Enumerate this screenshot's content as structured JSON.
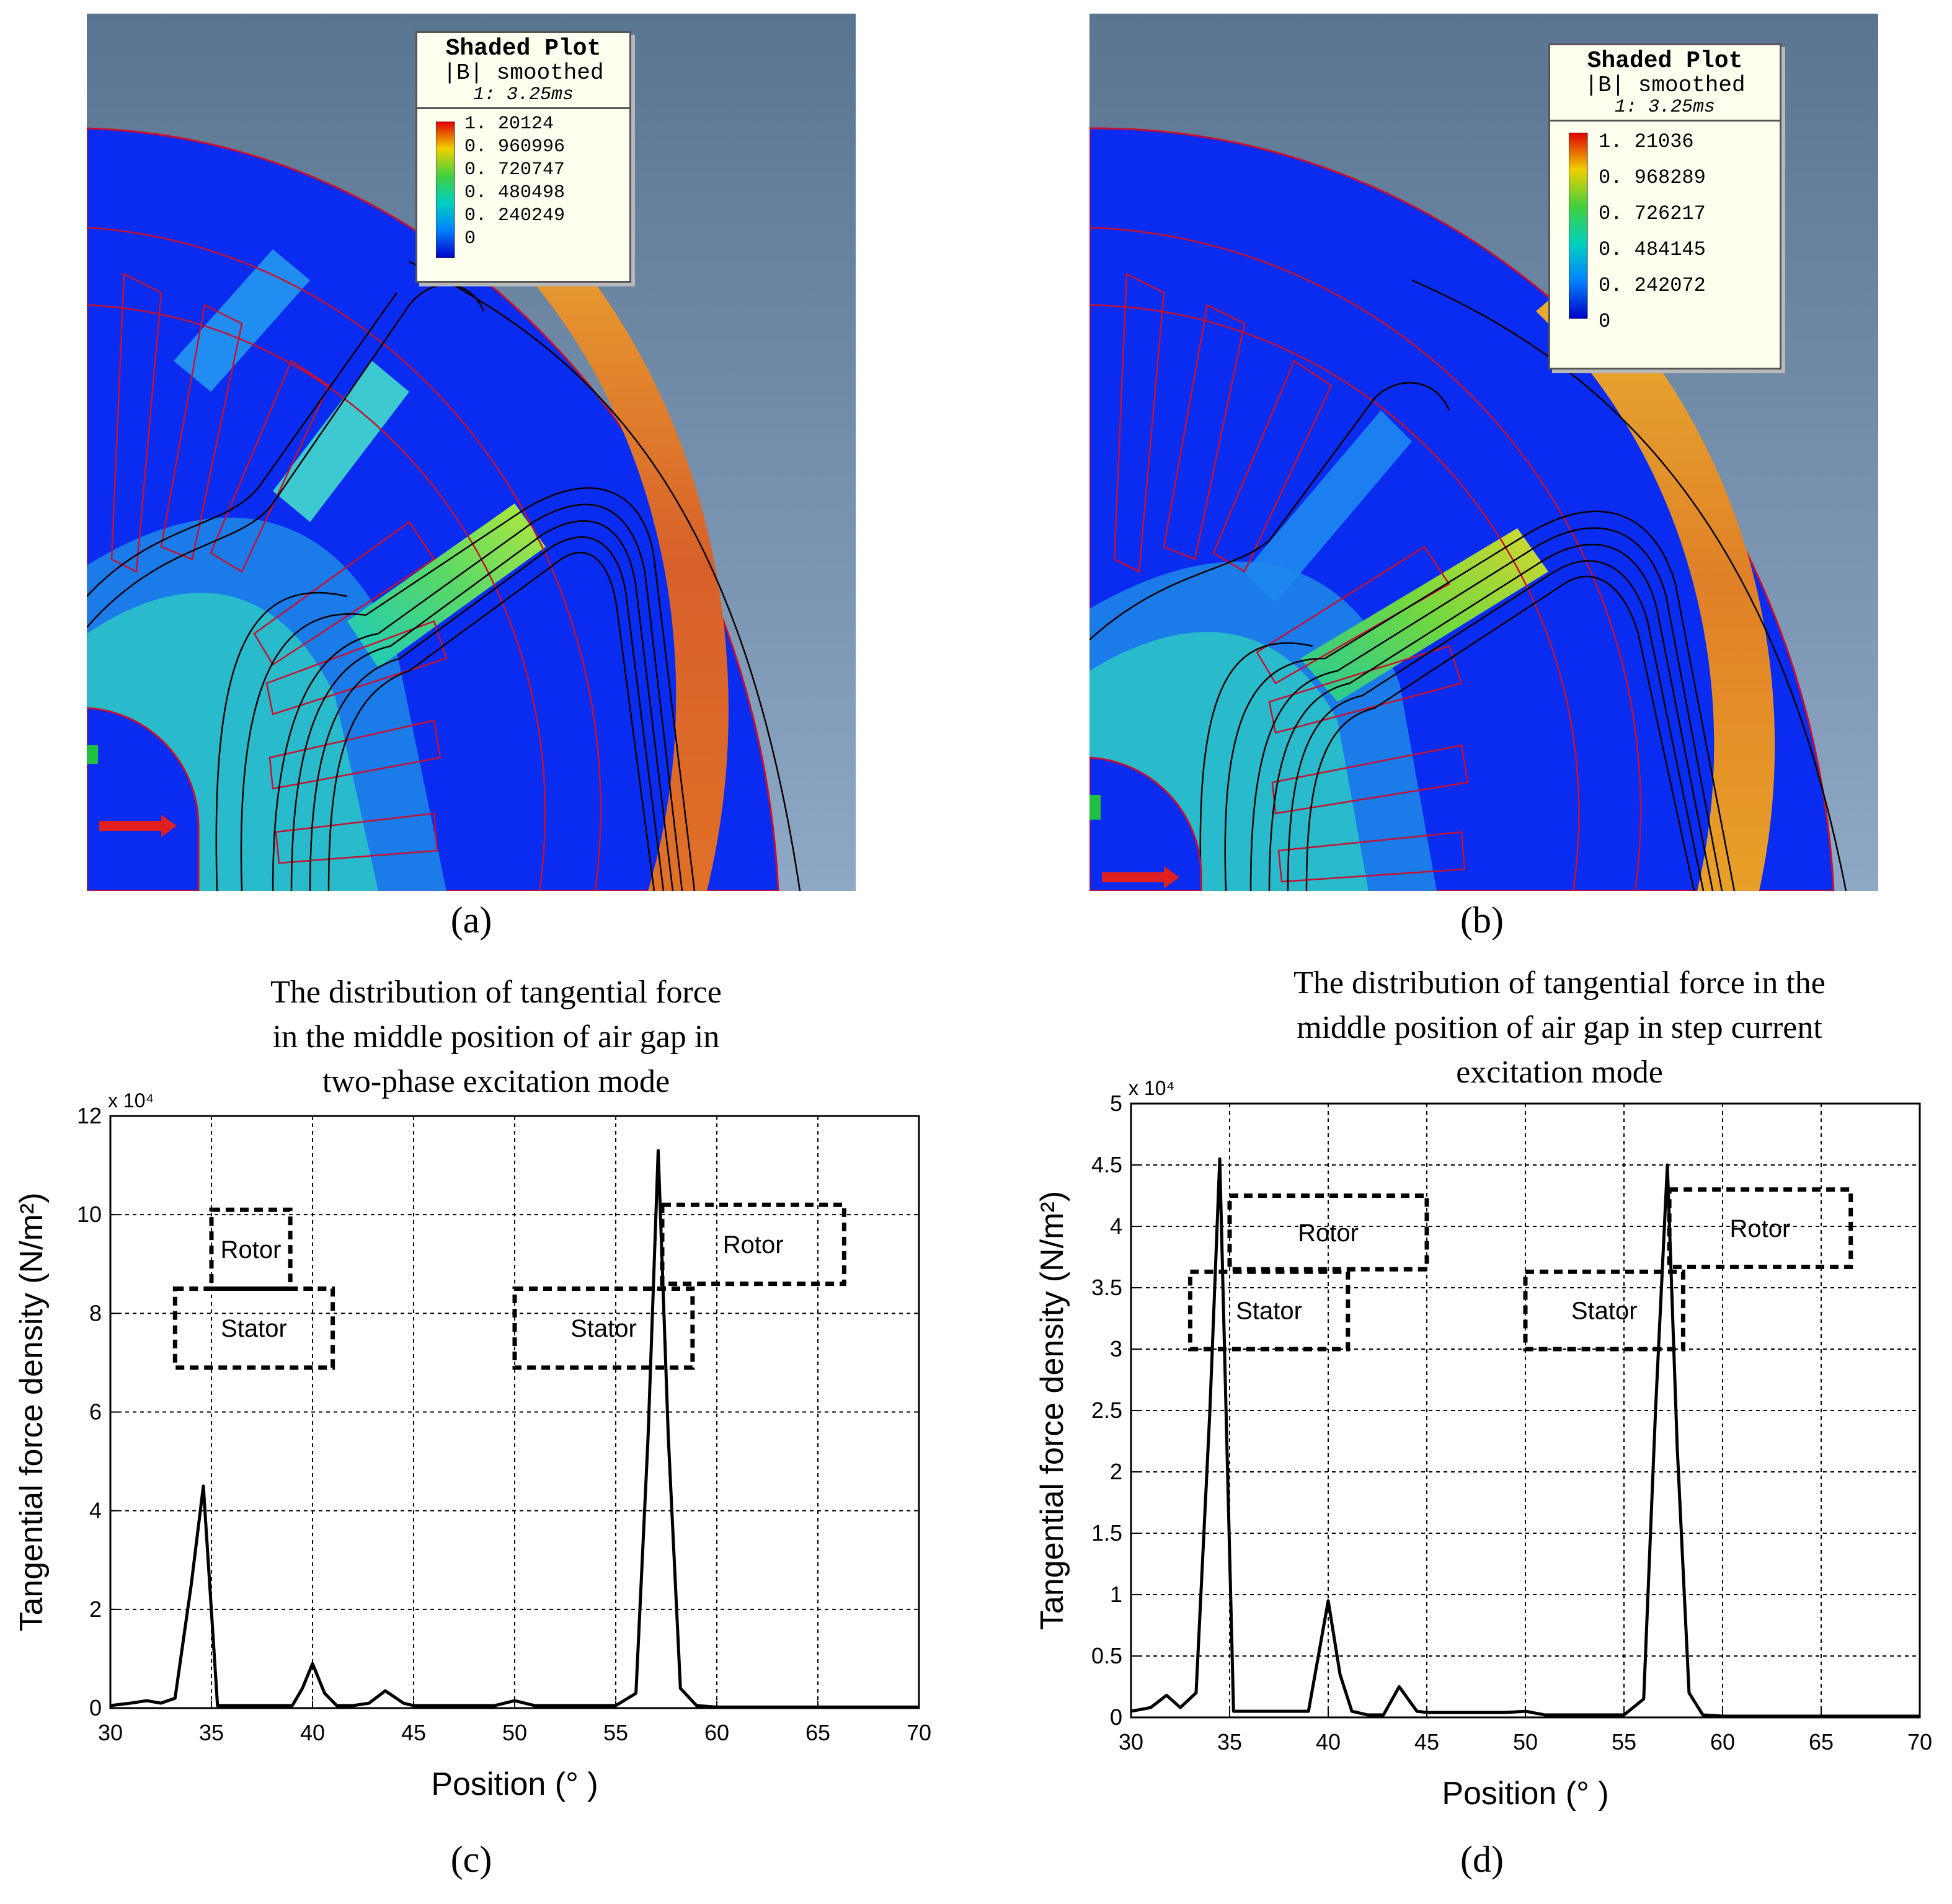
{
  "panels": [
    {
      "caption": "(a)",
      "legend": {
        "title": "Shaded Plot",
        "quantity": "|B| smoothed",
        "time": "1: 3.25ms",
        "values": [
          "1. 20124",
          "0. 960996",
          "0. 720747",
          "0. 480498",
          "0. 240249",
          "0"
        ]
      }
    },
    {
      "caption": "(b)",
      "legend": {
        "title": "Shaded Plot",
        "quantity": "|B| smoothed",
        "time": "1: 3.25ms",
        "values": [
          "1. 21036",
          "0. 968289",
          "0. 726217",
          "0. 484145",
          "0. 242072",
          "0"
        ]
      }
    },
    {
      "caption": "(c)"
    },
    {
      "caption": "(d)"
    }
  ],
  "colors": {
    "field_bg": "#0a2cf0",
    "sky_top": "#5a7591",
    "sky_bottom": "#8ea8c6",
    "boundary": "#c8102e"
  },
  "chart_data": [
    {
      "type": "line",
      "title_lines": [
        "The distribution of tangential force",
        "in the middle position of air gap in",
        "two-phase excitation mode"
      ],
      "xlabel": "Position (° )",
      "ylabel": "Tangential force density (N/m²)",
      "multiplier": "x 10⁴",
      "xlim": [
        30,
        70
      ],
      "ylim": [
        0,
        12
      ],
      "xticks": [
        30,
        35,
        40,
        45,
        50,
        55,
        60,
        65,
        70
      ],
      "yticks": [
        0,
        2,
        4,
        6,
        8,
        10,
        12
      ],
      "x": [
        30,
        31,
        31.8,
        32.5,
        33.2,
        34,
        34.6,
        35.3,
        36,
        37,
        38,
        39,
        39.5,
        40,
        40.6,
        41.2,
        42,
        42.8,
        43.6,
        44.5,
        45,
        47,
        49,
        50,
        51,
        53,
        55,
        56,
        56.6,
        57.1,
        57.6,
        58.2,
        59,
        60,
        62,
        65,
        70
      ],
      "y": [
        0.05,
        0.1,
        0.15,
        0.1,
        0.2,
        2.5,
        4.5,
        0.05,
        0.05,
        0.05,
        0.05,
        0.05,
        0.4,
        0.9,
        0.3,
        0.05,
        0.05,
        0.1,
        0.35,
        0.1,
        0.05,
        0.05,
        0.05,
        0.15,
        0.05,
        0.05,
        0.05,
        0.3,
        5.5,
        11.3,
        5.5,
        0.4,
        0.05,
        0.02,
        0.02,
        0.02,
        0.02
      ],
      "annotations": [
        {
          "label": "Rotor",
          "x0": 35.0,
          "x1": 38.9,
          "y0": 8.5,
          "y1": 10.1
        },
        {
          "label": "Stator",
          "x0": 33.2,
          "x1": 41.0,
          "y0": 6.9,
          "y1": 8.5
        },
        {
          "label": "Rotor",
          "x0": 57.3,
          "x1": 66.3,
          "y0": 8.6,
          "y1": 10.2
        },
        {
          "label": "Stator",
          "x0": 50.0,
          "x1": 58.8,
          "y0": 6.9,
          "y1": 8.5
        }
      ]
    },
    {
      "type": "line",
      "title_lines": [
        "The distribution of tangential force in the",
        "middle position of air gap in step current",
        "excitation mode"
      ],
      "xlabel": "Position (° )",
      "ylabel": "Tangential force density (N/m²)",
      "multiplier": "x 10⁴",
      "xlim": [
        30,
        70
      ],
      "ylim": [
        0,
        5
      ],
      "xticks": [
        30,
        35,
        40,
        45,
        50,
        55,
        60,
        65,
        70
      ],
      "yticks": [
        0,
        0.5,
        1,
        1.5,
        2,
        2.5,
        3,
        3.5,
        4,
        4.5,
        5
      ],
      "x": [
        30,
        31,
        31.8,
        32.5,
        33.3,
        34,
        34.5,
        35.2,
        36,
        37,
        38,
        39,
        39.5,
        40,
        40.6,
        41.2,
        42,
        42.8,
        43.6,
        44.5,
        45,
        47,
        49,
        50,
        51,
        53,
        55,
        56,
        56.6,
        57.2,
        57.7,
        58.3,
        59,
        60,
        62,
        65,
        70
      ],
      "y": [
        0.05,
        0.08,
        0.18,
        0.08,
        0.2,
        2.5,
        4.55,
        0.05,
        0.05,
        0.05,
        0.05,
        0.05,
        0.5,
        0.95,
        0.35,
        0.05,
        0.02,
        0.02,
        0.25,
        0.05,
        0.04,
        0.04,
        0.04,
        0.05,
        0.02,
        0.02,
        0.02,
        0.15,
        2.5,
        4.5,
        2.2,
        0.2,
        0.02,
        0.01,
        0.01,
        0.01,
        0.01
      ],
      "annotations": [
        {
          "label": "Rotor",
          "x0": 35.0,
          "x1": 45.0,
          "y0": 3.65,
          "y1": 4.25
        },
        {
          "label": "Stator",
          "x0": 33.0,
          "x1": 41.0,
          "y0": 3.0,
          "y1": 3.63
        },
        {
          "label": "Rotor",
          "x0": 57.3,
          "x1": 66.5,
          "y0": 3.67,
          "y1": 4.3
        },
        {
          "label": "Stator",
          "x0": 50.0,
          "x1": 58.0,
          "y0": 3.0,
          "y1": 3.63
        }
      ]
    }
  ]
}
